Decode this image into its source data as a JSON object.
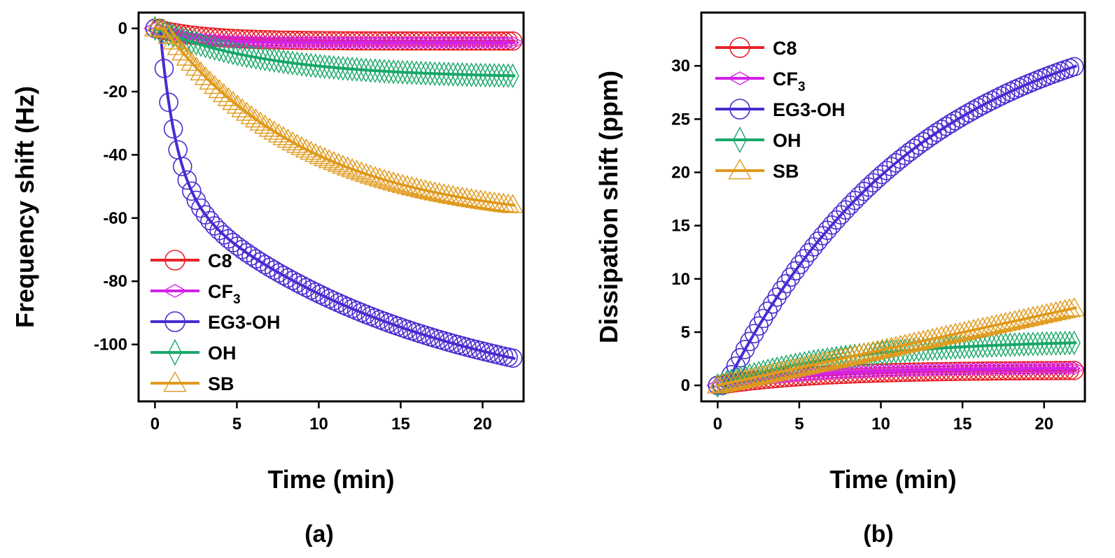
{
  "chart_data": [
    {
      "type": "line",
      "panel": "(a)",
      "caption": "(a)",
      "xlabel": "Time (min)",
      "ylabel": "Frequency shift (Hz)",
      "xlim": [
        -1,
        22.5
      ],
      "ylim": [
        -118,
        5
      ],
      "xticks": [
        0,
        5,
        10,
        15,
        20
      ],
      "yticks": [
        0,
        -20,
        -40,
        -60,
        -80,
        -100
      ],
      "legend_position": "bottom-left",
      "series": [
        {
          "name": "C8",
          "sub": "",
          "color": "#e8222a",
          "marker": "circle",
          "t_start": 0,
          "final": -4,
          "tau": 3,
          "kind": "exp"
        },
        {
          "name": "CF",
          "sub": "3",
          "color": "#d322e8",
          "marker": "diamond-h",
          "t_start": 0,
          "final": -4.5,
          "tau": 2,
          "kind": "exp"
        },
        {
          "name": "EG3-OH",
          "sub": "",
          "color": "#4a2bcf",
          "marker": "circle",
          "t_start": 0.3,
          "final": -104.5,
          "kind": "eg3freq"
        },
        {
          "name": "OH",
          "sub": "",
          "color": "#1aa86a",
          "marker": "diamond-v",
          "t_start": 0,
          "final": -15,
          "tau": 7,
          "kind": "exp"
        },
        {
          "name": "SB",
          "sub": "",
          "color": "#e09a1c",
          "marker": "triangle",
          "t_start": 0.5,
          "final": -56,
          "tau": 9,
          "kind": "exp"
        }
      ]
    },
    {
      "type": "line",
      "panel": "(b)",
      "caption": "(b)",
      "xlabel": "Time (min)",
      "ylabel": "Dissipation shift (ppm)",
      "xlim": [
        -1,
        22.5
      ],
      "ylim": [
        -1.5,
        35
      ],
      "xticks": [
        0,
        5,
        10,
        15,
        20
      ],
      "yticks": [
        0,
        5,
        10,
        15,
        20,
        25,
        30
      ],
      "legend_position": "top-left",
      "series": [
        {
          "name": "C8",
          "sub": "",
          "color": "#e8222a",
          "marker": "circle",
          "t_start": 0,
          "final": 1.4,
          "tau": 6,
          "kind": "exp"
        },
        {
          "name": "CF",
          "sub": "3",
          "color": "#d322e8",
          "marker": "diamond-h",
          "t_start": 0,
          "final": 1.6,
          "tau": 6,
          "kind": "exp"
        },
        {
          "name": "EG3-OH",
          "sub": "",
          "color": "#4a2bcf",
          "marker": "circle",
          "t_start": 0.5,
          "final": 30,
          "kind": "eg3diss"
        },
        {
          "name": "OH",
          "sub": "",
          "color": "#1aa86a",
          "marker": "diamond-v",
          "t_start": 0,
          "final": 4,
          "tau": 8,
          "kind": "exp"
        },
        {
          "name": "SB",
          "sub": "",
          "color": "#e09a1c",
          "marker": "triangle",
          "t_start": 0,
          "final": 7.3,
          "kind": "linear"
        }
      ]
    }
  ]
}
